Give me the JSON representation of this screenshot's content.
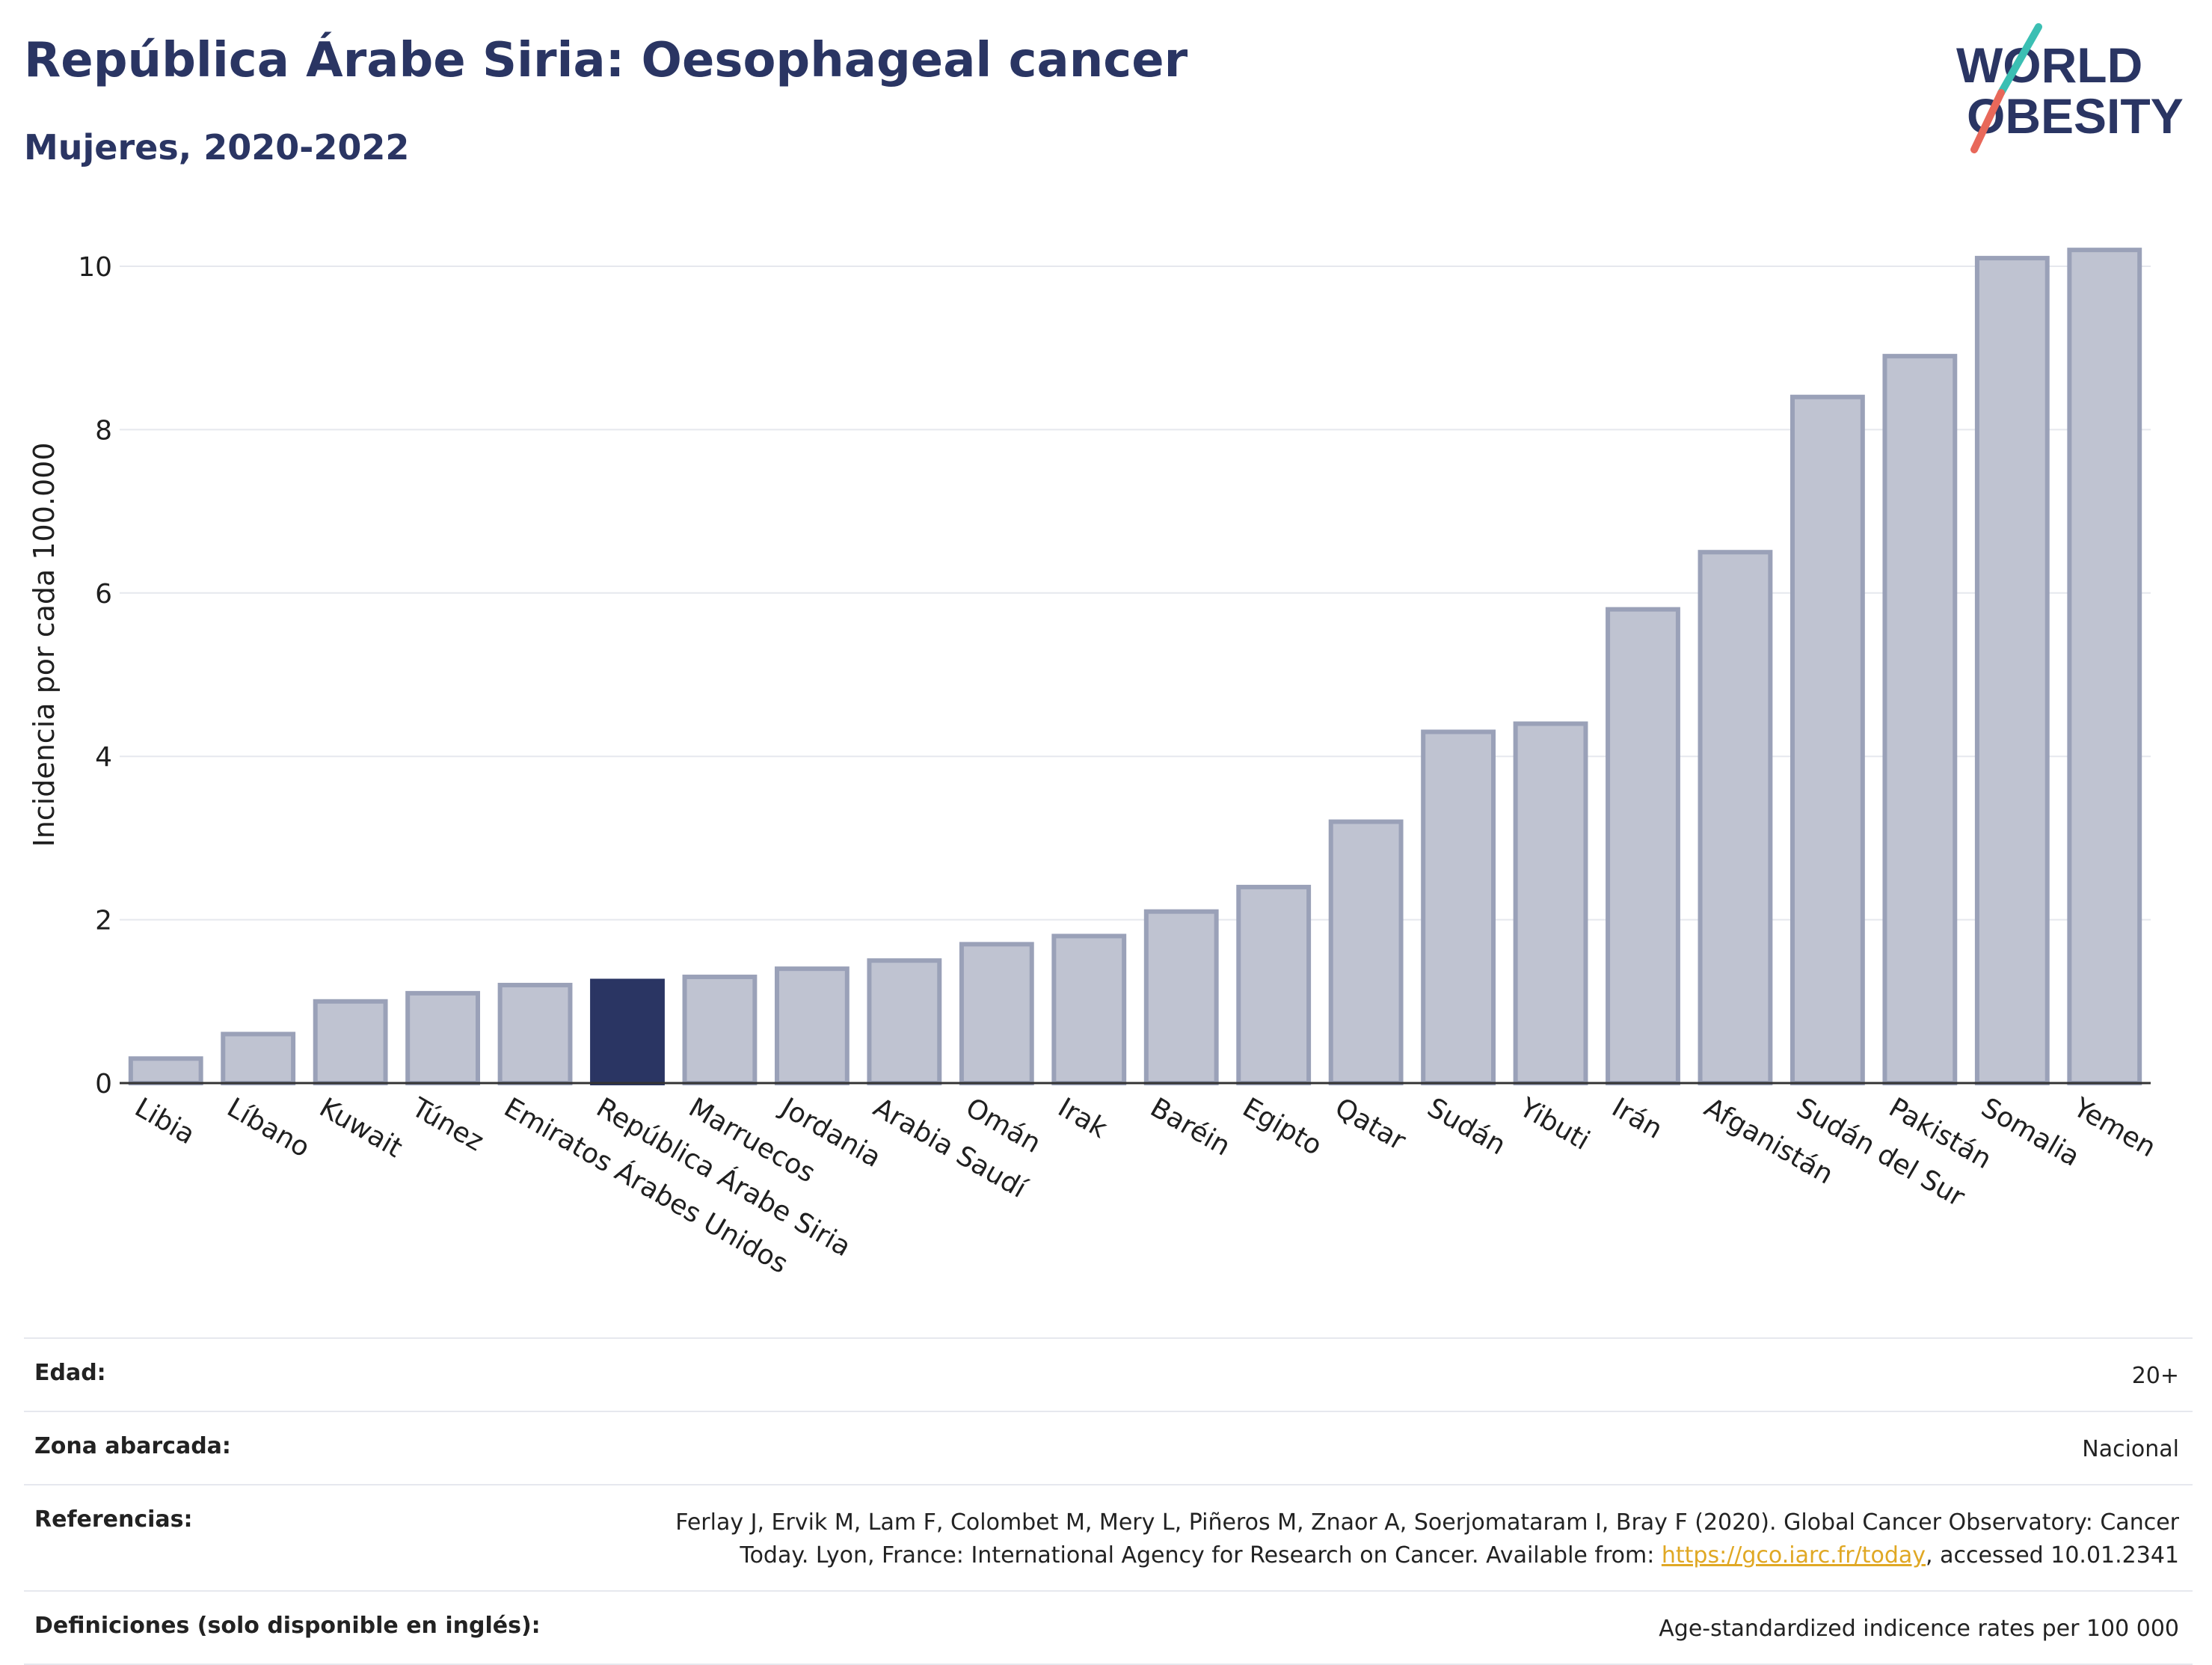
{
  "header": {
    "title": "República Árabe Siria: Oesophageal cancer",
    "subtitle": "Mujeres, 2020-2022"
  },
  "logo": {
    "line1": "WORLD",
    "line2": "OBESITY",
    "colors": {
      "text": "#2a3563",
      "slash_top": "#3bbfb3",
      "slash_bottom": "#e8685a"
    }
  },
  "colors": {
    "bar_fill": "#bfc3d1",
    "bar_stroke": "#9aa1b8",
    "highlight_fill": "#2a3563",
    "axis_text": "#1f1f1f",
    "grid": "#e6e8ee"
  },
  "chart_data": {
    "type": "bar",
    "title": "",
    "xlabel": "",
    "ylabel": "Incidencia por cada 100.000",
    "ylim": [
      0,
      10.5
    ],
    "yticks": [
      0,
      2,
      4,
      6,
      8,
      10
    ],
    "grid": true,
    "highlight": "República Árabe Siria",
    "categories": [
      "Libia",
      "Líbano",
      "Kuwait",
      "Túnez",
      "Emiratos Árabes Unidos",
      "República Árabe Siria",
      "Marruecos",
      "Jordania",
      "Arabia Saudí",
      "Omán",
      "Irak",
      "Baréin",
      "Egipto",
      "Qatar",
      "Sudán",
      "Yibuti",
      "Irán",
      "Afganistán",
      "Sudán del Sur",
      "Pakistán",
      "Somalia",
      "Yemen"
    ],
    "values": [
      0.3,
      0.6,
      1.0,
      1.1,
      1.2,
      1.25,
      1.3,
      1.4,
      1.5,
      1.7,
      1.8,
      2.1,
      2.4,
      3.2,
      4.3,
      4.4,
      5.8,
      6.5,
      8.4,
      8.9,
      10.1,
      10.2
    ]
  },
  "metadata_table": [
    {
      "label": "Edad:",
      "value": "20+"
    },
    {
      "label": "Zona abarcada:",
      "value": "Nacional"
    },
    {
      "label": "Referencias:",
      "value_line1": "Ferlay J, Ervik M, Lam F, Colombet M, Mery L, Piñeros M, Znaor A, Soerjomataram I, Bray F (2020). Global Cancer Observatory: Cancer",
      "value_line2_before": "Today. Lyon, France: International Agency for Research on Cancer. Available from: ",
      "link_text": "https://gco.iarc.fr/today",
      "value_line2_after": ", accessed 10.01.2341"
    },
    {
      "label": "Definiciones (solo disponible en inglés):",
      "value": "Age-standardized indicence rates per 100 000"
    }
  ]
}
